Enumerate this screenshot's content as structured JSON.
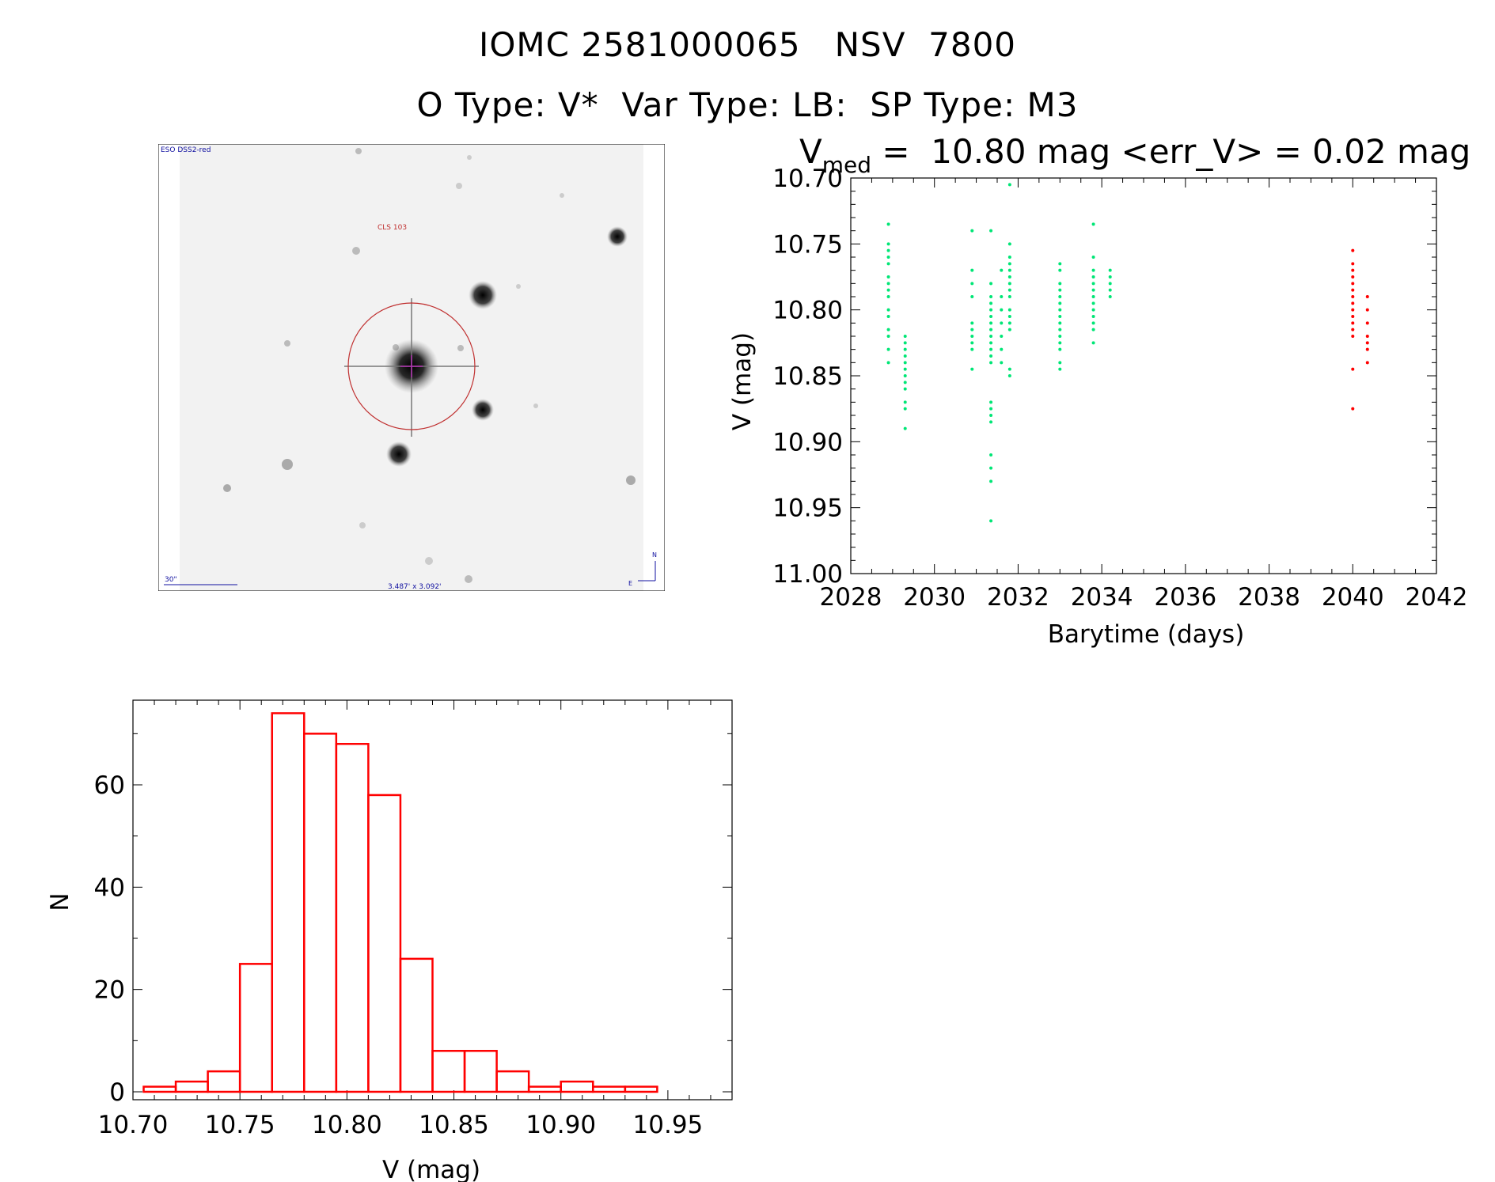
{
  "header": {
    "line1": "IOMC 2581000065   NSV  7800",
    "line2": "O Type: V*  Var Type: LB:  SP Type: M3"
  },
  "finder_chart": {
    "survey_label": "ESO DSS2-red",
    "object_label": "CLS 103",
    "scale_label": "30\"",
    "fov_label": "3.487' x 3.092'",
    "north_label": "N",
    "east_label": "E",
    "colors": {
      "background": "#f0f0f0",
      "circle": "#c03030",
      "annotation": "#1010a0"
    }
  },
  "chart_data": [
    {
      "type": "scatter",
      "title_prefix": "V",
      "title_subscript": "med",
      "title_rest": " =  10.80 mag <err_V> = 0.02 mag",
      "xlabel": "Barytime (days)",
      "ylabel": "V (mag)",
      "xlim": [
        2028,
        2042
      ],
      "ylim": [
        10.7,
        11.0
      ],
      "y_inverted": true,
      "xticks": [
        2028,
        2030,
        2032,
        2034,
        2036,
        2038,
        2040,
        2042
      ],
      "yticks": [
        10.7,
        10.75,
        10.8,
        10.85,
        10.9,
        10.95,
        11.0
      ],
      "grid": false,
      "series": [
        {
          "color": "#00e676",
          "points": [
            [
              2028.9,
              10.735
            ],
            [
              2028.9,
              10.75
            ],
            [
              2028.9,
              10.755
            ],
            [
              2028.9,
              10.76
            ],
            [
              2028.9,
              10.765
            ],
            [
              2028.9,
              10.775
            ],
            [
              2028.9,
              10.78
            ],
            [
              2028.9,
              10.785
            ],
            [
              2028.9,
              10.79
            ],
            [
              2028.9,
              10.8
            ],
            [
              2028.9,
              10.805
            ],
            [
              2028.9,
              10.815
            ],
            [
              2028.9,
              10.82
            ],
            [
              2028.9,
              10.83
            ],
            [
              2028.9,
              10.84
            ],
            [
              2029.3,
              10.82
            ],
            [
              2029.3,
              10.825
            ],
            [
              2029.3,
              10.83
            ],
            [
              2029.3,
              10.835
            ],
            [
              2029.3,
              10.84
            ],
            [
              2029.3,
              10.845
            ],
            [
              2029.3,
              10.85
            ],
            [
              2029.3,
              10.855
            ],
            [
              2029.3,
              10.86
            ],
            [
              2029.3,
              10.87
            ],
            [
              2029.3,
              10.875
            ],
            [
              2029.3,
              10.89
            ],
            [
              2030.9,
              10.74
            ],
            [
              2030.9,
              10.77
            ],
            [
              2030.9,
              10.78
            ],
            [
              2030.9,
              10.79
            ],
            [
              2030.9,
              10.81
            ],
            [
              2030.9,
              10.815
            ],
            [
              2030.9,
              10.82
            ],
            [
              2030.9,
              10.825
            ],
            [
              2030.9,
              10.83
            ],
            [
              2030.9,
              10.845
            ],
            [
              2031.35,
              10.74
            ],
            [
              2031.35,
              10.78
            ],
            [
              2031.35,
              10.79
            ],
            [
              2031.35,
              10.795
            ],
            [
              2031.35,
              10.8
            ],
            [
              2031.35,
              10.805
            ],
            [
              2031.35,
              10.81
            ],
            [
              2031.35,
              10.815
            ],
            [
              2031.35,
              10.82
            ],
            [
              2031.35,
              10.825
            ],
            [
              2031.35,
              10.83
            ],
            [
              2031.35,
              10.835
            ],
            [
              2031.35,
              10.84
            ],
            [
              2031.35,
              10.87
            ],
            [
              2031.35,
              10.875
            ],
            [
              2031.35,
              10.88
            ],
            [
              2031.35,
              10.885
            ],
            [
              2031.35,
              10.91
            ],
            [
              2031.35,
              10.92
            ],
            [
              2031.35,
              10.93
            ],
            [
              2031.35,
              10.96
            ],
            [
              2031.6,
              10.77
            ],
            [
              2031.6,
              10.79
            ],
            [
              2031.6,
              10.8
            ],
            [
              2031.6,
              10.81
            ],
            [
              2031.6,
              10.82
            ],
            [
              2031.6,
              10.83
            ],
            [
              2031.6,
              10.84
            ],
            [
              2031.8,
              10.705
            ],
            [
              2031.8,
              10.75
            ],
            [
              2031.8,
              10.76
            ],
            [
              2031.8,
              10.765
            ],
            [
              2031.8,
              10.77
            ],
            [
              2031.8,
              10.775
            ],
            [
              2031.8,
              10.78
            ],
            [
              2031.8,
              10.785
            ],
            [
              2031.8,
              10.79
            ],
            [
              2031.8,
              10.8
            ],
            [
              2031.8,
              10.805
            ],
            [
              2031.8,
              10.81
            ],
            [
              2031.8,
              10.815
            ],
            [
              2031.8,
              10.845
            ],
            [
              2031.8,
              10.85
            ],
            [
              2033.0,
              10.765
            ],
            [
              2033.0,
              10.77
            ],
            [
              2033.0,
              10.78
            ],
            [
              2033.0,
              10.785
            ],
            [
              2033.0,
              10.79
            ],
            [
              2033.0,
              10.795
            ],
            [
              2033.0,
              10.8
            ],
            [
              2033.0,
              10.805
            ],
            [
              2033.0,
              10.81
            ],
            [
              2033.0,
              10.815
            ],
            [
              2033.0,
              10.82
            ],
            [
              2033.0,
              10.825
            ],
            [
              2033.0,
              10.83
            ],
            [
              2033.0,
              10.84
            ],
            [
              2033.0,
              10.845
            ],
            [
              2033.8,
              10.735
            ],
            [
              2033.8,
              10.76
            ],
            [
              2033.8,
              10.77
            ],
            [
              2033.8,
              10.775
            ],
            [
              2033.8,
              10.78
            ],
            [
              2033.8,
              10.785
            ],
            [
              2033.8,
              10.79
            ],
            [
              2033.8,
              10.795
            ],
            [
              2033.8,
              10.8
            ],
            [
              2033.8,
              10.805
            ],
            [
              2033.8,
              10.81
            ],
            [
              2033.8,
              10.815
            ],
            [
              2033.8,
              10.825
            ],
            [
              2034.2,
              10.77
            ],
            [
              2034.2,
              10.775
            ],
            [
              2034.2,
              10.78
            ],
            [
              2034.2,
              10.785
            ],
            [
              2034.2,
              10.79
            ]
          ]
        },
        {
          "color": "#ff0000",
          "points": [
            [
              2040.0,
              10.755
            ],
            [
              2040.0,
              10.765
            ],
            [
              2040.0,
              10.77
            ],
            [
              2040.0,
              10.775
            ],
            [
              2040.0,
              10.78
            ],
            [
              2040.0,
              10.785
            ],
            [
              2040.0,
              10.79
            ],
            [
              2040.0,
              10.795
            ],
            [
              2040.0,
              10.8
            ],
            [
              2040.0,
              10.805
            ],
            [
              2040.0,
              10.81
            ],
            [
              2040.0,
              10.815
            ],
            [
              2040.0,
              10.82
            ],
            [
              2040.0,
              10.845
            ],
            [
              2040.0,
              10.875
            ],
            [
              2040.35,
              10.79
            ],
            [
              2040.35,
              10.8
            ],
            [
              2040.35,
              10.81
            ],
            [
              2040.35,
              10.82
            ],
            [
              2040.35,
              10.825
            ],
            [
              2040.35,
              10.83
            ],
            [
              2040.35,
              10.84
            ]
          ]
        }
      ]
    },
    {
      "type": "bar",
      "xlabel": "V (mag)",
      "ylabel": "N",
      "xlim": [
        10.7,
        10.98
      ],
      "ylim": [
        0,
        75
      ],
      "xticks": [
        10.7,
        10.75,
        10.8,
        10.85,
        10.9,
        10.95
      ],
      "yticks": [
        0,
        20,
        40,
        60
      ],
      "bin_width": 0.015,
      "bin_starts": [
        10.705,
        10.72,
        10.735,
        10.75,
        10.765,
        10.78,
        10.795,
        10.81,
        10.825,
        10.84,
        10.855,
        10.87,
        10.885,
        10.9,
        10.915,
        10.93,
        10.945
      ],
      "counts": [
        1,
        2,
        4,
        25,
        74,
        70,
        68,
        58,
        26,
        8,
        8,
        4,
        1,
        2,
        1,
        1,
        0
      ],
      "color": "#ff0000",
      "grid": false
    }
  ]
}
